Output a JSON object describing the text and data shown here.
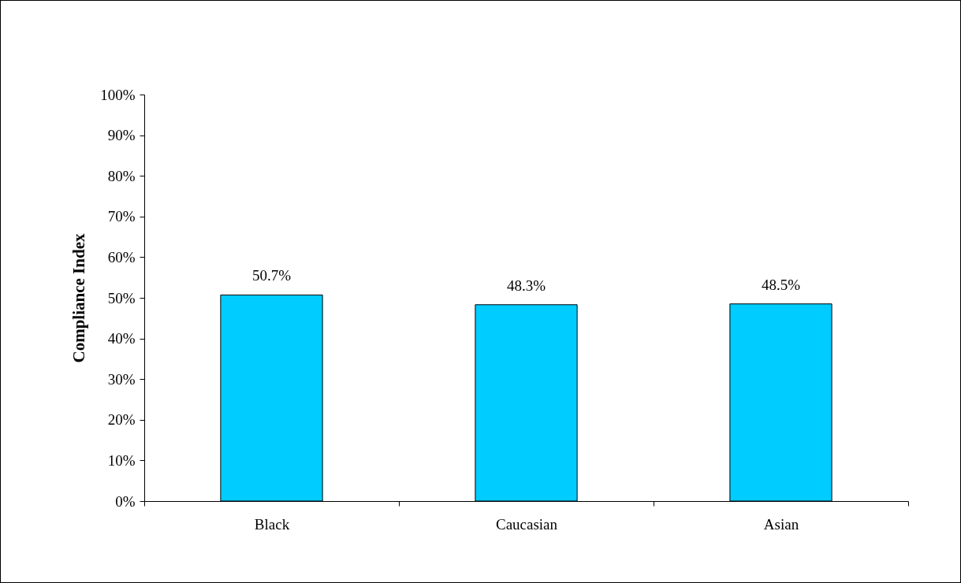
{
  "chart_data": {
    "type": "bar",
    "ylabel": "Compliance Index",
    "categories": [
      "Black",
      "Caucasian",
      "Asian"
    ],
    "values": [
      50.7,
      48.3,
      48.5
    ],
    "value_labels": [
      "50.7%",
      "48.3%",
      "48.5%"
    ],
    "color": "#00ccff",
    "ylim": [
      0,
      100
    ],
    "yticks": [
      {
        "value": 0,
        "label": "0%"
      },
      {
        "value": 10,
        "label": "10%"
      },
      {
        "value": 20,
        "label": "20%"
      },
      {
        "value": 30,
        "label": "30%"
      },
      {
        "value": 40,
        "label": "40%"
      },
      {
        "value": 50,
        "label": "50%"
      },
      {
        "value": 60,
        "label": "60%"
      },
      {
        "value": 70,
        "label": "70%"
      },
      {
        "value": 80,
        "label": "80%"
      },
      {
        "value": 90,
        "label": "90%"
      },
      {
        "value": 100,
        "label": "100%"
      }
    ],
    "grid": false
  }
}
